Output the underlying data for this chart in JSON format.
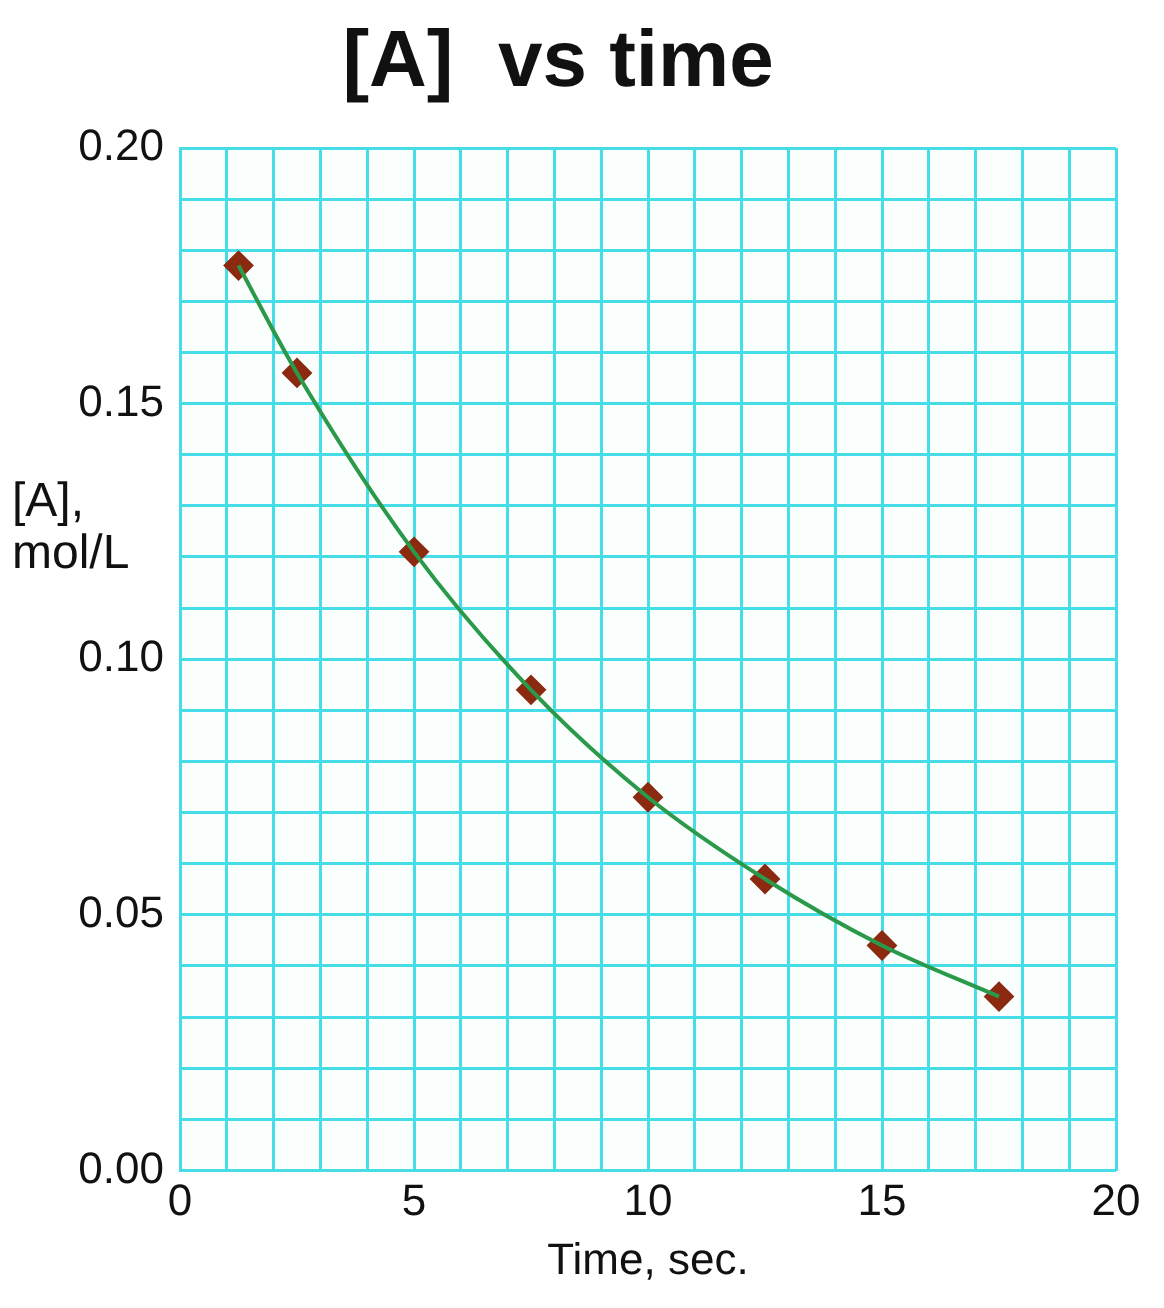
{
  "chart_data": {
    "type": "line",
    "title": "[A]  vs time",
    "xlabel": "Time, sec.",
    "ylabel": "[A], mol/L",
    "x": [
      1.25,
      2.5,
      5,
      7.5,
      10,
      12.5,
      15,
      17.5
    ],
    "series": [
      {
        "color": "#2a9a4a",
        "marker": "none",
        "values": [
          0.177,
          0.156,
          0.121,
          0.094,
          0.073,
          0.057,
          0.044,
          0.034
        ]
      },
      {
        "type": "scatter",
        "color": "#8b2a10",
        "marker": "diamond",
        "values": [
          0.177,
          0.156,
          0.121,
          0.094,
          0.073,
          0.057,
          0.044,
          0.034
        ]
      }
    ],
    "xlim": [
      0,
      20
    ],
    "xticks": [
      0,
      {
        "value": 1,
        "label": null
      },
      {
        "value": 2,
        "label": null
      },
      {
        "value": 3,
        "label": null
      },
      {
        "value": 4,
        "label": null
      },
      5,
      {
        "value": 6,
        "label": null
      },
      {
        "value": 7,
        "label": null
      },
      {
        "value": 8,
        "label": null
      },
      {
        "value": 9,
        "label": null
      },
      10,
      {
        "value": 11,
        "label": null
      },
      {
        "value": 12,
        "label": null
      },
      {
        "value": 13,
        "label": null
      },
      {
        "value": 14,
        "label": null
      },
      15,
      {
        "value": 16,
        "label": null
      },
      {
        "value": 17,
        "label": null
      },
      {
        "value": 18,
        "label": null
      },
      {
        "value": 19,
        "label": null
      },
      20
    ],
    "ylim": [
      0,
      0.2
    ],
    "yticks": [
      {
        "value": 0,
        "label": "0.00"
      },
      {
        "value": 0.01,
        "label": null
      },
      {
        "value": 0.02,
        "label": null
      },
      {
        "value": 0.03,
        "label": null
      },
      {
        "value": 0.04,
        "label": null
      },
      {
        "value": 0.05,
        "label": "0.05"
      },
      {
        "value": 0.06,
        "label": null
      },
      {
        "value": 0.07,
        "label": null
      },
      {
        "value": 0.08,
        "label": null
      },
      {
        "value": 0.09,
        "label": null
      },
      {
        "value": 0.1,
        "label": "0.10"
      },
      {
        "value": 0.11,
        "label": null
      },
      {
        "value": 0.12,
        "label": null
      },
      {
        "value": 0.13,
        "label": null
      },
      {
        "value": 0.14,
        "label": null
      },
      {
        "value": 0.15,
        "label": "0.15"
      },
      {
        "value": 0.16,
        "label": null
      },
      {
        "value": 0.17,
        "label": null
      },
      {
        "value": 0.18,
        "label": null
      },
      {
        "value": 0.19,
        "label": null
      },
      {
        "value": 0.2,
        "label": "0.20"
      }
    ],
    "grid": true,
    "legend": false
  }
}
